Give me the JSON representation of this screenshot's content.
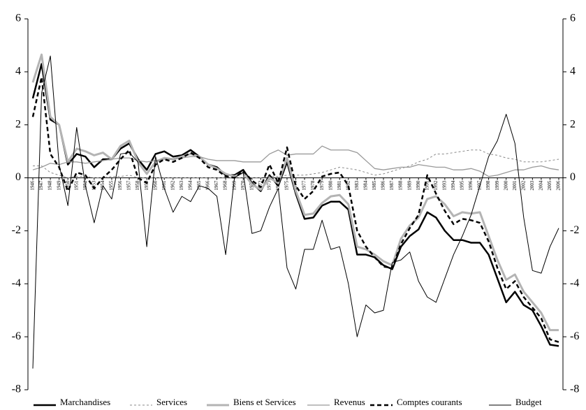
{
  "chart_data": {
    "type": "line",
    "x": [
      1946,
      1947,
      1948,
      1949,
      1950,
      1951,
      1952,
      1953,
      1954,
      1955,
      1956,
      1957,
      1958,
      1959,
      1960,
      1961,
      1962,
      1963,
      1964,
      1965,
      1966,
      1967,
      1968,
      1969,
      1970,
      1971,
      1972,
      1973,
      1974,
      1975,
      1976,
      1977,
      1978,
      1979,
      1980,
      1981,
      1982,
      1983,
      1984,
      1985,
      1986,
      1987,
      1988,
      1989,
      1990,
      1991,
      1992,
      1993,
      1994,
      1995,
      1996,
      1997,
      1998,
      1999,
      2000,
      2001,
      2002,
      2003,
      2004,
      2005,
      2006
    ],
    "xlim": [
      1946,
      2006
    ],
    "ylim": [
      -8,
      6
    ],
    "yticks": [
      -8,
      -6,
      -4,
      -2,
      0,
      2,
      4,
      6
    ],
    "y2lim": [
      -8,
      6
    ],
    "y2ticks": [
      -8,
      -6,
      -4,
      -2,
      0,
      2,
      4,
      6
    ],
    "series": [
      {
        "name": "Marchandises",
        "color": "#000000",
        "width": 2.5,
        "dash": false,
        "values": [
          3.0,
          4.3,
          2.2,
          2.0,
          0.5,
          0.9,
          0.8,
          0.4,
          0.7,
          0.7,
          1.1,
          1.3,
          0.7,
          0.3,
          0.9,
          1.0,
          0.8,
          0.85,
          1.05,
          0.8,
          0.5,
          0.4,
          0.1,
          0.1,
          0.3,
          -0.2,
          -0.5,
          0.1,
          -0.3,
          0.6,
          -0.6,
          -1.55,
          -1.5,
          -1.05,
          -0.9,
          -0.9,
          -1.2,
          -2.9,
          -2.9,
          -3.0,
          -3.3,
          -3.45,
          -2.6,
          -2.2,
          -1.95,
          -1.3,
          -1.5,
          -2.0,
          -2.35,
          -2.35,
          -2.45,
          -2.45,
          -2.9,
          -3.8,
          -4.7,
          -4.3,
          -4.8,
          -5.0,
          -5.6,
          -6.3,
          -6.35
        ]
      },
      {
        "name": "Services",
        "color": "#888888",
        "width": 1,
        "dash": true,
        "values": [
          0.45,
          0.45,
          0.2,
          0.1,
          0.0,
          0.05,
          0.05,
          0.0,
          0.0,
          0.05,
          0.05,
          0.1,
          0.0,
          0.0,
          0.0,
          0.0,
          0.0,
          0.0,
          0.0,
          0.0,
          0.0,
          0.0,
          0.0,
          0.0,
          0.0,
          0.0,
          0.0,
          0.05,
          0.05,
          0.1,
          0.1,
          0.1,
          0.15,
          0.2,
          0.3,
          0.4,
          0.35,
          0.3,
          0.2,
          0.1,
          0.15,
          0.25,
          0.35,
          0.45,
          0.6,
          0.7,
          0.9,
          0.9,
          0.95,
          1.0,
          1.05,
          1.05,
          0.9,
          0.85,
          0.75,
          0.7,
          0.6,
          0.6,
          0.6,
          0.65,
          0.7
        ]
      },
      {
        "name": "Biens et Services",
        "color": "#b4b4b4",
        "width": 3,
        "dash": false,
        "values": [
          3.6,
          4.65,
          2.3,
          2.0,
          0.6,
          1.1,
          1.0,
          0.85,
          0.95,
          0.7,
          1.2,
          1.4,
          0.6,
          0.15,
          0.6,
          0.75,
          0.7,
          0.8,
          0.9,
          0.8,
          0.5,
          0.35,
          0.15,
          0.05,
          0.2,
          -0.25,
          -0.45,
          0.0,
          -0.2,
          0.75,
          -0.5,
          -1.4,
          -1.35,
          -0.95,
          -0.7,
          -0.65,
          -1.0,
          -2.6,
          -2.7,
          -2.9,
          -3.15,
          -3.3,
          -2.3,
          -1.8,
          -1.5,
          -0.8,
          -0.7,
          -1.0,
          -1.45,
          -1.3,
          -1.35,
          -1.3,
          -2.2,
          -3.1,
          -3.85,
          -3.65,
          -4.3,
          -4.7,
          -5.1,
          -5.75,
          -5.75
        ]
      },
      {
        "name": "Revenus",
        "color": "#999999",
        "width": 1.3,
        "dash": false,
        "values": [
          0.3,
          0.4,
          0.55,
          0.5,
          0.6,
          0.6,
          0.55,
          0.6,
          0.65,
          0.7,
          0.75,
          0.75,
          0.65,
          0.6,
          0.65,
          0.7,
          0.7,
          0.75,
          0.8,
          0.8,
          0.7,
          0.65,
          0.65,
          0.65,
          0.6,
          0.6,
          0.6,
          0.9,
          1.05,
          0.85,
          0.9,
          0.9,
          0.9,
          1.2,
          1.05,
          1.05,
          1.05,
          0.95,
          0.65,
          0.35,
          0.3,
          0.35,
          0.4,
          0.4,
          0.5,
          0.45,
          0.4,
          0.4,
          0.3,
          0.3,
          0.35,
          0.25,
          0.05,
          0.1,
          0.2,
          0.3,
          0.3,
          0.4,
          0.45,
          0.35,
          0.3
        ]
      },
      {
        "name": "Comptes courants",
        "color": "#000000",
        "width": 2.5,
        "dash": true,
        "values": [
          2.3,
          3.8,
          0.9,
          0.4,
          -0.5,
          0.2,
          0.1,
          -0.4,
          0.0,
          0.3,
          0.7,
          1.05,
          0.0,
          -0.2,
          0.5,
          0.7,
          0.6,
          0.75,
          0.95,
          0.75,
          0.4,
          0.3,
          0.05,
          0.0,
          0.25,
          -0.1,
          -0.35,
          0.5,
          -0.2,
          1.15,
          -0.3,
          -0.8,
          -0.5,
          0.05,
          0.15,
          0.2,
          -0.3,
          -2.0,
          -2.6,
          -3.0,
          -3.35,
          -3.4,
          -2.5,
          -1.9,
          -1.4,
          0.1,
          -0.6,
          -1.25,
          -1.75,
          -1.55,
          -1.6,
          -1.7,
          -2.4,
          -3.4,
          -4.2,
          -3.9,
          -4.5,
          -4.9,
          -5.3,
          -6.1,
          -6.2
        ]
      },
      {
        "name": "Budget",
        "color": "#000000",
        "width": 1,
        "dash": false,
        "values": [
          -7.2,
          3.2,
          4.6,
          0.5,
          -1.05,
          1.9,
          -0.3,
          -1.7,
          -0.3,
          -0.8,
          0.9,
          0.95,
          0.6,
          -2.6,
          0.8,
          -0.4,
          -1.3,
          -0.7,
          -0.9,
          -0.3,
          -0.4,
          -0.7,
          -2.9,
          0.0,
          0.2,
          -2.1,
          -2.0,
          -1.1,
          -0.4,
          -3.4,
          -4.2,
          -2.7,
          -2.7,
          -1.6,
          -2.7,
          -2.6,
          -4.0,
          -6.0,
          -4.8,
          -5.1,
          -5.0,
          -3.2,
          -3.1,
          -2.8,
          -3.9,
          -4.5,
          -4.7,
          -3.8,
          -2.9,
          -2.2,
          -1.4,
          -0.3,
          0.8,
          1.4,
          2.4,
          1.3,
          -1.5,
          -3.5,
          -3.6,
          -2.6,
          -1.9
        ]
      }
    ]
  }
}
